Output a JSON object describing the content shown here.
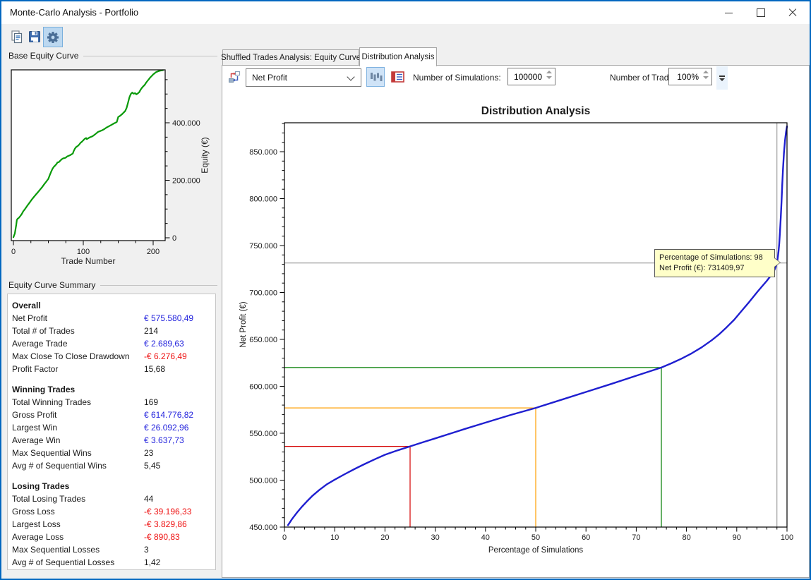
{
  "window": {
    "title": "Monte-Carlo Analysis - Portfolio",
    "buttons": [
      "minimize",
      "maximize",
      "close"
    ]
  },
  "toolbar": {
    "icons": [
      "copy-icon",
      "save-icon",
      "settings-gear-icon"
    ],
    "selected_icon": "settings-gear-icon"
  },
  "left_panel": {
    "base_equity_title": "Base Equity Curve",
    "summary_title": "Equity Curve Summary",
    "summary_sections": [
      {
        "title": "Overall",
        "rows": [
          {
            "label": "Net Profit",
            "value": "€ 575.580,49",
            "color": "blue"
          },
          {
            "label": "Total # of Trades",
            "value": "214",
            "color": "black"
          },
          {
            "label": "Average Trade",
            "value": "€ 2.689,63",
            "color": "blue"
          },
          {
            "label": "Max Close To Close Drawdown",
            "value": "-€ 6.276,49",
            "color": "red"
          },
          {
            "label": "Profit Factor",
            "value": "15,68",
            "color": "black"
          }
        ]
      },
      {
        "title": "Winning Trades",
        "rows": [
          {
            "label": "Total Winning Trades",
            "value": "169",
            "color": "black"
          },
          {
            "label": "Gross Profit",
            "value": "€ 614.776,82",
            "color": "blue"
          },
          {
            "label": "Largest Win",
            "value": "€ 26.092,96",
            "color": "blue"
          },
          {
            "label": "Average Win",
            "value": "€ 3.637,73",
            "color": "blue"
          },
          {
            "label": "Max Sequential Wins",
            "value": "23",
            "color": "black"
          },
          {
            "label": "Avg # of Sequential Wins",
            "value": "5,45",
            "color": "black"
          }
        ]
      },
      {
        "title": "Losing Trades",
        "rows": [
          {
            "label": "Total Losing Trades",
            "value": "44",
            "color": "black"
          },
          {
            "label": "Gross Loss",
            "value": "-€ 39.196,33",
            "color": "red"
          },
          {
            "label": "Largest Loss",
            "value": "-€ 3.829,86",
            "color": "red"
          },
          {
            "label": "Average Loss",
            "value": "-€ 890,83",
            "color": "red"
          },
          {
            "label": "Max Sequential Losses",
            "value": "3",
            "color": "black"
          },
          {
            "label": "Avg # of Sequential Losses",
            "value": "1,42",
            "color": "black"
          }
        ]
      }
    ]
  },
  "tabs": [
    {
      "label": "Shuffled Trades Analysis: Equity Curve",
      "active": false
    },
    {
      "label": "Distribution Analysis",
      "active": true
    }
  ],
  "controls": {
    "metric_dropdown_value": "Net Profit",
    "icons": [
      "shuffle-metric-icon",
      "histogram-view-icon",
      "table-view-icon",
      "toolbar-overflow-icon"
    ],
    "selected_view": "histogram-view-icon",
    "simulations_label": "Number of Simulations:",
    "simulations_value": "100000",
    "trades_label": "Number of Trades (%):",
    "trades_value": "100%"
  },
  "tooltip": {
    "line1": "Percentage of Simulations: 98",
    "line2": "Net Profit (€): 731409,97"
  },
  "colors": {
    "window_border": "#0067c0",
    "value_blue": "#2424dd",
    "value_red": "#ee1111",
    "equity_line": "#0a9a0a",
    "distribution_line": "#1f1fd0",
    "ref_25": "#d40000",
    "ref_50": "#ff9f00",
    "ref_75": "#007d00",
    "crosshair": "#8c8c8c",
    "tooltip_bg": "#ffffc9"
  },
  "chart_data": [
    {
      "type": "line",
      "name": "base-equity-curve",
      "title": "",
      "xlabel": "Trade Number",
      "ylabel": "Equity (€)",
      "xlim": [
        0,
        218
      ],
      "ylim": [
        0,
        594000
      ],
      "xticks": {
        "values": [
          0,
          100,
          200
        ],
        "labels": [
          "0",
          "100",
          "200"
        ],
        "minor_step": 25
      },
      "yticks": {
        "values": [
          0,
          200000,
          400000
        ],
        "labels": [
          "0",
          "200.000",
          "400.000"
        ],
        "minor_step": 50000
      },
      "line_color": "#0a9a0a",
      "points": [
        [
          0,
          2000
        ],
        [
          2,
          15000
        ],
        [
          4,
          45000
        ],
        [
          5,
          62000
        ],
        [
          6,
          66000
        ],
        [
          8,
          70000
        ],
        [
          10,
          76000
        ],
        [
          12,
          83000
        ],
        [
          14,
          92000
        ],
        [
          16,
          98000
        ],
        [
          18,
          105000
        ],
        [
          20,
          112000
        ],
        [
          23,
          122000
        ],
        [
          26,
          132000
        ],
        [
          29,
          141000
        ],
        [
          32,
          150000
        ],
        [
          35,
          158000
        ],
        [
          38,
          167000
        ],
        [
          41,
          176000
        ],
        [
          44,
          186000
        ],
        [
          47,
          195000
        ],
        [
          50,
          205000
        ],
        [
          52,
          218000
        ],
        [
          54,
          230000
        ],
        [
          56,
          240000
        ],
        [
          58,
          247000
        ],
        [
          60,
          252000
        ],
        [
          62,
          258000
        ],
        [
          63,
          262000
        ],
        [
          65,
          263000
        ],
        [
          67,
          268000
        ],
        [
          69,
          273000
        ],
        [
          71,
          276000
        ],
        [
          73,
          277000
        ],
        [
          75,
          279000
        ],
        [
          77,
          283000
        ],
        [
          79,
          285000
        ],
        [
          81,
          287000
        ],
        [
          83,
          290000
        ],
        [
          85,
          293000
        ],
        [
          86,
          300000
        ],
        [
          88,
          310000
        ],
        [
          90,
          316000
        ],
        [
          92,
          319000
        ],
        [
          94,
          324000
        ],
        [
          96,
          330000
        ],
        [
          98,
          334000
        ],
        [
          100,
          339000
        ],
        [
          102,
          344000
        ],
        [
          104,
          347000
        ],
        [
          105,
          343000
        ],
        [
          107,
          346000
        ],
        [
          109,
          349000
        ],
        [
          111,
          351000
        ],
        [
          113,
          353000
        ],
        [
          115,
          356000
        ],
        [
          117,
          360000
        ],
        [
          119,
          364000
        ],
        [
          121,
          368000
        ],
        [
          124,
          371000
        ],
        [
          127,
          374000
        ],
        [
          130,
          378000
        ],
        [
          133,
          383000
        ],
        [
          136,
          387000
        ],
        [
          139,
          391000
        ],
        [
          142,
          395000
        ],
        [
          144,
          398000
        ],
        [
          146,
          400000
        ],
        [
          148,
          403000
        ],
        [
          150,
          420000
        ],
        [
          152,
          423000
        ],
        [
          154,
          427000
        ],
        [
          156,
          431000
        ],
        [
          158,
          436000
        ],
        [
          160,
          441000
        ],
        [
          162,
          452000
        ],
        [
          164,
          470000
        ],
        [
          166,
          488000
        ],
        [
          168,
          500000
        ],
        [
          170,
          505000
        ],
        [
          172,
          501000
        ],
        [
          174,
          503000
        ],
        [
          176,
          499000
        ],
        [
          178,
          502000
        ],
        [
          180,
          506000
        ],
        [
          182,
          515000
        ],
        [
          184,
          522000
        ],
        [
          186,
          527000
        ],
        [
          188,
          532000
        ],
        [
          190,
          540000
        ],
        [
          192,
          546000
        ],
        [
          194,
          552000
        ],
        [
          196,
          558000
        ],
        [
          198,
          563000
        ],
        [
          200,
          568000
        ],
        [
          202,
          572000
        ],
        [
          204,
          576000
        ],
        [
          206,
          578000
        ],
        [
          208,
          580000
        ],
        [
          210,
          581000
        ],
        [
          212,
          582000
        ],
        [
          214,
          583000
        ]
      ]
    },
    {
      "type": "line",
      "name": "distribution-analysis",
      "title": "Distribution Analysis",
      "xlabel": "Percentage of Simulations",
      "ylabel": "Net Profit (€)",
      "xlim": [
        0,
        100
      ],
      "ylim": [
        450000,
        880800
      ],
      "xticks": {
        "values": [
          0,
          10,
          20,
          30,
          40,
          50,
          60,
          70,
          80,
          90,
          100
        ],
        "labels": [
          "0",
          "10",
          "20",
          "30",
          "40",
          "50",
          "60",
          "70",
          "80",
          "90",
          "100"
        ],
        "minor_step": 2
      },
      "yticks": {
        "values": [
          450000,
          500000,
          550000,
          600000,
          650000,
          700000,
          750000,
          800000,
          850000
        ],
        "labels": [
          "450.000",
          "500.000",
          "550.000",
          "600.000",
          "650.000",
          "700.000",
          "750.000",
          "800.000",
          "850.000"
        ],
        "minor_step": 10000
      },
      "line_color": "#1f1fd0",
      "points": [
        [
          0.7,
          452000
        ],
        [
          1.5,
          458500
        ],
        [
          2.5,
          465500
        ],
        [
          3.5,
          471800
        ],
        [
          4.5,
          477500
        ],
        [
          5.5,
          483000
        ],
        [
          7,
          489800
        ],
        [
          8.5,
          495800
        ],
        [
          10,
          500500
        ],
        [
          12,
          506400
        ],
        [
          14,
          512000
        ],
        [
          16,
          517300
        ],
        [
          18,
          522300
        ],
        [
          20,
          527100
        ],
        [
          22.5,
          531700
        ],
        [
          25,
          536000
        ],
        [
          27.5,
          540300
        ],
        [
          30,
          544500
        ],
        [
          33,
          549600
        ],
        [
          36,
          554700
        ],
        [
          39,
          559700
        ],
        [
          42,
          564600
        ],
        [
          45,
          569500
        ],
        [
          48,
          574000
        ],
        [
          50,
          577000
        ],
        [
          55,
          585500
        ],
        [
          60,
          594000
        ],
        [
          65,
          602500
        ],
        [
          70,
          611300
        ],
        [
          75,
          620000
        ],
        [
          77,
          624500
        ],
        [
          79,
          629500
        ],
        [
          81,
          635000
        ],
        [
          83,
          641500
        ],
        [
          85,
          649000
        ],
        [
          86.5,
          655500
        ],
        [
          88,
          663000
        ],
        [
          89.5,
          671000
        ],
        [
          91,
          680500
        ],
        [
          92.5,
          690000
        ],
        [
          94,
          700000
        ],
        [
          95,
          706300
        ],
        [
          96,
          712500
        ],
        [
          97,
          719500
        ],
        [
          97.5,
          723800
        ],
        [
          98,
          731410
        ],
        [
          98.15,
          736500
        ],
        [
          98.3,
          743000
        ],
        [
          98.45,
          752000
        ],
        [
          98.6,
          764000
        ],
        [
          98.75,
          779000
        ],
        [
          98.9,
          796000
        ],
        [
          99.05,
          814000
        ],
        [
          99.2,
          831000
        ],
        [
          99.4,
          849000
        ],
        [
          99.6,
          862000
        ],
        [
          99.8,
          871000
        ],
        [
          100,
          877000
        ]
      ],
      "reference_lines": [
        {
          "x": 25,
          "y": 536000,
          "color": "#d40000",
          "style": "quartile"
        },
        {
          "x": 50,
          "y": 577000,
          "color": "#ff9f00",
          "style": "quartile"
        },
        {
          "x": 75,
          "y": 620000,
          "color": "#007d00",
          "style": "quartile"
        },
        {
          "x": 98,
          "y": 731409.97,
          "color": "#8c8c8c",
          "style": "crosshair"
        }
      ]
    }
  ]
}
